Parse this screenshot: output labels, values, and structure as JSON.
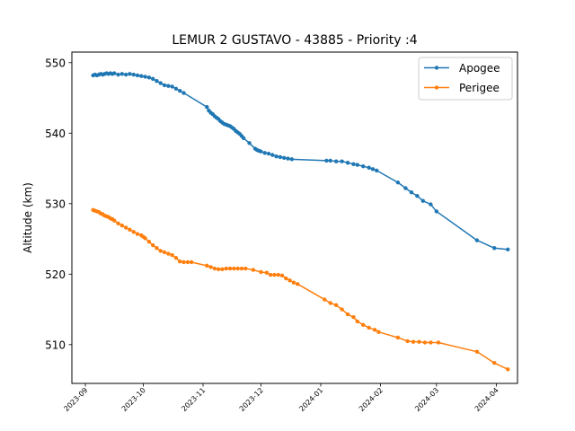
{
  "chart_data": {
    "type": "line",
    "title": "LEMUR 2 GUSTAVO - 43885 - Priority :4",
    "xlabel": "",
    "ylabel": "Altitude (km)",
    "ylim": [
      504.5,
      551.5
    ],
    "xlim": [
      "2023-08-25",
      "2024-04-12"
    ],
    "yticks": [
      510,
      520,
      530,
      540,
      550
    ],
    "xticks": [
      "2023-09",
      "2023-10",
      "2023-11",
      "2023-12",
      "2024-01",
      "2024-02",
      "2024-03",
      "2024-04"
    ],
    "legend": "top-right",
    "grid": false,
    "series": [
      {
        "name": "Apogee",
        "color": "#1f77b4",
        "points": [
          [
            "2023-09-05",
            548.2
          ],
          [
            "2023-09-06",
            548.3
          ],
          [
            "2023-09-07",
            548.2
          ],
          [
            "2023-09-08",
            548.3
          ],
          [
            "2023-09-09",
            548.4
          ],
          [
            "2023-09-10",
            548.3
          ],
          [
            "2023-09-11",
            548.4
          ],
          [
            "2023-09-12",
            548.5
          ],
          [
            "2023-09-13",
            548.4
          ],
          [
            "2023-09-14",
            548.5
          ],
          [
            "2023-09-15",
            548.4
          ],
          [
            "2023-09-16",
            548.5
          ],
          [
            "2023-09-18",
            548.3
          ],
          [
            "2023-09-20",
            548.4
          ],
          [
            "2023-09-22",
            548.3
          ],
          [
            "2023-09-24",
            548.4
          ],
          [
            "2023-09-26",
            548.3
          ],
          [
            "2023-09-28",
            548.2
          ],
          [
            "2023-09-30",
            548.1
          ],
          [
            "2023-10-02",
            548.0
          ],
          [
            "2023-10-04",
            547.9
          ],
          [
            "2023-10-06",
            547.7
          ],
          [
            "2023-10-08",
            547.4
          ],
          [
            "2023-10-10",
            547.1
          ],
          [
            "2023-10-12",
            546.8
          ],
          [
            "2023-10-14",
            546.7
          ],
          [
            "2023-10-16",
            546.6
          ],
          [
            "2023-10-18",
            546.3
          ],
          [
            "2023-10-20",
            546.0
          ],
          [
            "2023-10-22",
            545.7
          ],
          [
            "2023-11-03",
            543.7
          ],
          [
            "2023-11-04",
            543.2
          ],
          [
            "2023-11-05",
            542.9
          ],
          [
            "2023-11-06",
            542.7
          ],
          [
            "2023-11-07",
            542.4
          ],
          [
            "2023-11-08",
            542.2
          ],
          [
            "2023-11-09",
            542.0
          ],
          [
            "2023-11-10",
            541.7
          ],
          [
            "2023-11-11",
            541.5
          ],
          [
            "2023-11-12",
            541.3
          ],
          [
            "2023-11-13",
            541.2
          ],
          [
            "2023-11-14",
            541.1
          ],
          [
            "2023-11-15",
            541.0
          ],
          [
            "2023-11-16",
            540.8
          ],
          [
            "2023-11-17",
            540.6
          ],
          [
            "2023-11-18",
            540.3
          ],
          [
            "2023-11-19",
            540.1
          ],
          [
            "2023-11-20",
            539.9
          ],
          [
            "2023-11-21",
            539.6
          ],
          [
            "2023-11-22",
            539.3
          ],
          [
            "2023-11-25",
            538.6
          ],
          [
            "2023-11-28",
            537.8
          ],
          [
            "2023-11-29",
            537.6
          ],
          [
            "2023-11-30",
            537.5
          ],
          [
            "2023-12-01",
            537.4
          ],
          [
            "2023-12-03",
            537.2
          ],
          [
            "2023-12-05",
            537.1
          ],
          [
            "2023-12-07",
            536.9
          ],
          [
            "2023-12-09",
            536.7
          ],
          [
            "2023-12-11",
            536.6
          ],
          [
            "2023-12-13",
            536.5
          ],
          [
            "2023-12-15",
            536.4
          ],
          [
            "2023-12-17",
            536.3
          ],
          [
            "2024-01-04",
            536.1
          ],
          [
            "2024-01-06",
            536.1
          ],
          [
            "2024-01-09",
            536.0
          ],
          [
            "2024-01-12",
            536.0
          ],
          [
            "2024-01-15",
            535.8
          ],
          [
            "2024-01-18",
            535.6
          ],
          [
            "2024-01-20",
            535.5
          ],
          [
            "2024-01-23",
            535.3
          ],
          [
            "2024-01-26",
            535.1
          ],
          [
            "2024-01-28",
            534.9
          ],
          [
            "2024-01-30",
            534.7
          ],
          [
            "2024-02-10",
            533.0
          ],
          [
            "2024-02-14",
            532.2
          ],
          [
            "2024-02-17",
            531.6
          ],
          [
            "2024-02-20",
            531.1
          ],
          [
            "2024-02-23",
            530.4
          ],
          [
            "2024-02-27",
            529.9
          ],
          [
            "2024-03-01",
            528.9
          ],
          [
            "2024-03-22",
            524.8
          ],
          [
            "2024-03-31",
            523.7
          ],
          [
            "2024-04-07",
            523.5
          ]
        ]
      },
      {
        "name": "Perigee",
        "color": "#ff7f0e",
        "points": [
          [
            "2023-09-05",
            529.1
          ],
          [
            "2023-09-06",
            529.0
          ],
          [
            "2023-09-07",
            528.9
          ],
          [
            "2023-09-08",
            528.8
          ],
          [
            "2023-09-09",
            528.6
          ],
          [
            "2023-09-10",
            528.5
          ],
          [
            "2023-09-11",
            528.3
          ],
          [
            "2023-09-12",
            528.2
          ],
          [
            "2023-09-13",
            528.1
          ],
          [
            "2023-09-14",
            527.9
          ],
          [
            "2023-09-15",
            527.8
          ],
          [
            "2023-09-16",
            527.6
          ],
          [
            "2023-09-18",
            527.2
          ],
          [
            "2023-09-20",
            526.9
          ],
          [
            "2023-09-22",
            526.6
          ],
          [
            "2023-09-24",
            526.3
          ],
          [
            "2023-09-26",
            526.0
          ],
          [
            "2023-09-28",
            525.7
          ],
          [
            "2023-09-30",
            525.5
          ],
          [
            "2023-10-01",
            525.3
          ],
          [
            "2023-10-02",
            525.1
          ],
          [
            "2023-10-04",
            524.6
          ],
          [
            "2023-10-06",
            524.1
          ],
          [
            "2023-10-08",
            523.7
          ],
          [
            "2023-10-10",
            523.3
          ],
          [
            "2023-10-12",
            523.1
          ],
          [
            "2023-10-14",
            522.9
          ],
          [
            "2023-10-16",
            522.7
          ],
          [
            "2023-10-18",
            522.3
          ],
          [
            "2023-10-20",
            521.8
          ],
          [
            "2023-10-22",
            521.7
          ],
          [
            "2023-10-24",
            521.7
          ],
          [
            "2023-10-26",
            521.7
          ],
          [
            "2023-11-03",
            521.2
          ],
          [
            "2023-11-05",
            521.0
          ],
          [
            "2023-11-07",
            520.8
          ],
          [
            "2023-11-09",
            520.7
          ],
          [
            "2023-11-11",
            520.7
          ],
          [
            "2023-11-13",
            520.8
          ],
          [
            "2023-11-15",
            520.8
          ],
          [
            "2023-11-17",
            520.8
          ],
          [
            "2023-11-19",
            520.8
          ],
          [
            "2023-11-21",
            520.8
          ],
          [
            "2023-11-23",
            520.8
          ],
          [
            "2023-11-27",
            520.6
          ],
          [
            "2023-12-01",
            520.3
          ],
          [
            "2023-12-04",
            520.2
          ],
          [
            "2023-12-06",
            519.9
          ],
          [
            "2023-12-08",
            519.9
          ],
          [
            "2023-12-10",
            519.9
          ],
          [
            "2023-12-12",
            519.8
          ],
          [
            "2023-12-14",
            519.4
          ],
          [
            "2023-12-16",
            519.1
          ],
          [
            "2023-12-18",
            518.8
          ],
          [
            "2023-12-20",
            518.6
          ],
          [
            "2024-01-03",
            516.4
          ],
          [
            "2024-01-06",
            515.9
          ],
          [
            "2024-01-09",
            515.6
          ],
          [
            "2024-01-12",
            515.0
          ],
          [
            "2024-01-15",
            514.3
          ],
          [
            "2024-01-18",
            513.9
          ],
          [
            "2024-01-20",
            513.3
          ],
          [
            "2024-01-23",
            512.8
          ],
          [
            "2024-01-26",
            512.4
          ],
          [
            "2024-01-29",
            512.1
          ],
          [
            "2024-01-31",
            511.8
          ],
          [
            "2024-02-10",
            511.0
          ],
          [
            "2024-02-15",
            510.5
          ],
          [
            "2024-02-18",
            510.4
          ],
          [
            "2024-02-21",
            510.4
          ],
          [
            "2024-02-24",
            510.3
          ],
          [
            "2024-02-27",
            510.3
          ],
          [
            "2024-03-02",
            510.3
          ],
          [
            "2024-03-22",
            509.0
          ],
          [
            "2024-03-31",
            507.4
          ],
          [
            "2024-04-07",
            506.5
          ]
        ]
      }
    ]
  }
}
